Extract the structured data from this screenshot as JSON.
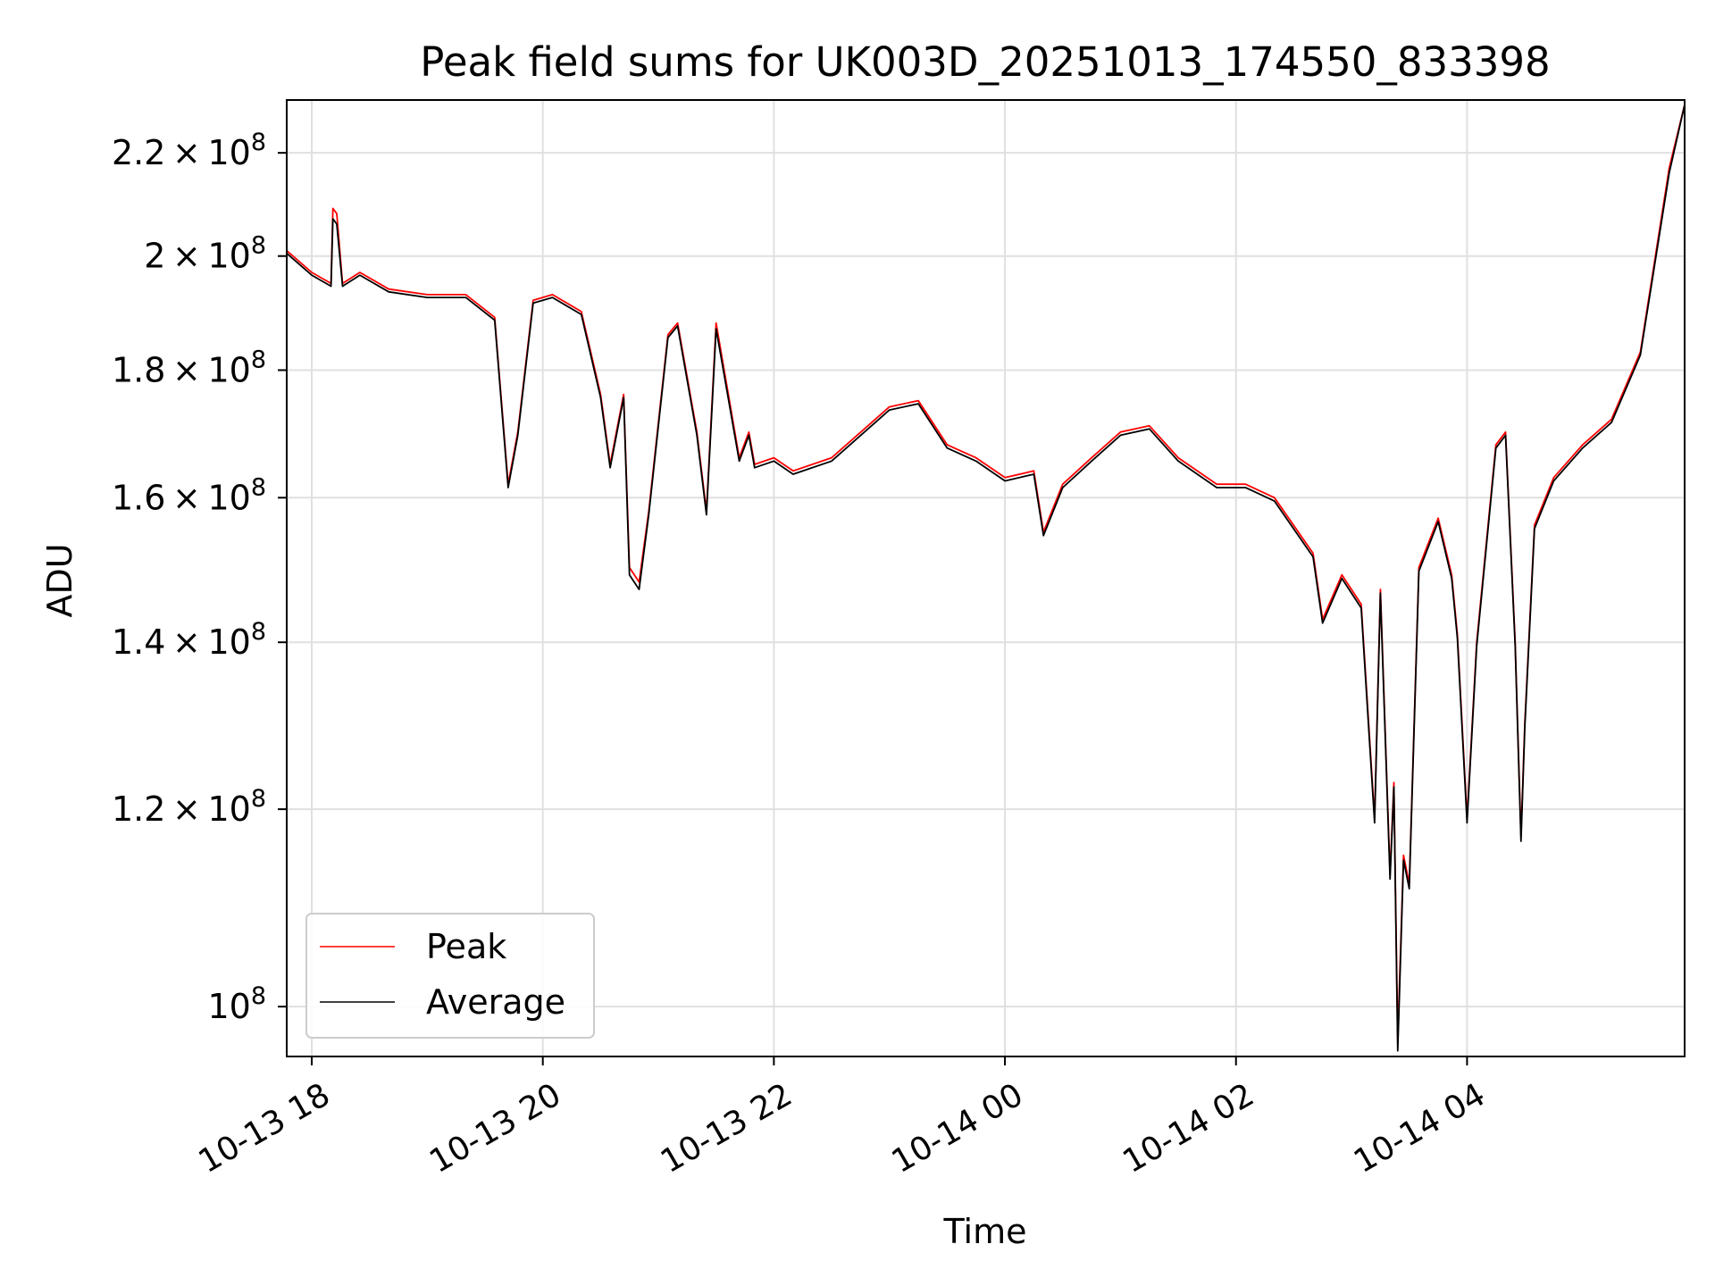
{
  "chart_data": {
    "type": "line",
    "title": "Peak field sums for UK003D_20251013_174550_833398",
    "xlabel": "Time",
    "ylabel": "ADU",
    "yscale": "log",
    "grid": true,
    "legend_placement": "lower-left",
    "xlim": [
      "2025-10-13 17:47",
      "2025-10-14 05:53"
    ],
    "ylim": [
      95500000,
      231000000
    ],
    "x_ticks": [
      "2025-10-13 18:00",
      "2025-10-13 20:00",
      "2025-10-13 22:00",
      "2025-10-14 00:00",
      "2025-10-14 02:00",
      "2025-10-14 04:00"
    ],
    "x_tick_labels": [
      "10-13 18",
      "10-13 20",
      "10-13 22",
      "10-14 00",
      "10-14 02",
      "10-14 04"
    ],
    "y_ticks": [
      100000000,
      120000000,
      140000000,
      160000000,
      180000000,
      200000000,
      220000000
    ],
    "y_tick_labels": [
      {
        "mantissa": "",
        "exp": "8"
      },
      {
        "mantissa": "1.2",
        "exp": "8"
      },
      {
        "mantissa": "1.4",
        "exp": "8"
      },
      {
        "mantissa": "1.6",
        "exp": "8"
      },
      {
        "mantissa": "1.8",
        "exp": "8"
      },
      {
        "mantissa": "2",
        "exp": "8"
      },
      {
        "mantissa": "2.2",
        "exp": "8"
      }
    ],
    "series": [
      {
        "name": "Peak",
        "color": "#ff0000",
        "x": [
          "2025-10-13 17:47",
          "2025-10-13 18:00",
          "2025-10-13 18:10",
          "2025-10-13 18:11",
          "2025-10-13 18:13",
          "2025-10-13 18:16",
          "2025-10-13 18:25",
          "2025-10-13 18:40",
          "2025-10-13 19:00",
          "2025-10-13 19:20",
          "2025-10-13 19:35",
          "2025-10-13 19:42",
          "2025-10-13 19:47",
          "2025-10-13 19:55",
          "2025-10-13 20:05",
          "2025-10-13 20:20",
          "2025-10-13 20:30",
          "2025-10-13 20:35",
          "2025-10-13 20:42",
          "2025-10-13 20:45",
          "2025-10-13 20:50",
          "2025-10-13 20:55",
          "2025-10-13 21:05",
          "2025-10-13 21:10",
          "2025-10-13 21:20",
          "2025-10-13 21:25",
          "2025-10-13 21:30",
          "2025-10-13 21:42",
          "2025-10-13 21:47",
          "2025-10-13 21:50",
          "2025-10-13 22:00",
          "2025-10-13 22:10",
          "2025-10-13 22:30",
          "2025-10-13 23:00",
          "2025-10-13 23:15",
          "2025-10-13 23:30",
          "2025-10-13 23:45",
          "2025-10-14 00:00",
          "2025-10-14 00:15",
          "2025-10-14 00:20",
          "2025-10-14 00:30",
          "2025-10-14 00:45",
          "2025-10-14 01:00",
          "2025-10-14 01:15",
          "2025-10-14 01:30",
          "2025-10-14 01:50",
          "2025-10-14 02:05",
          "2025-10-14 02:20",
          "2025-10-14 02:40",
          "2025-10-14 02:45",
          "2025-10-14 02:55",
          "2025-10-14 03:05",
          "2025-10-14 03:12",
          "2025-10-14 03:15",
          "2025-10-14 03:20",
          "2025-10-14 03:22",
          "2025-10-14 03:24",
          "2025-10-14 03:27",
          "2025-10-14 03:30",
          "2025-10-14 03:35",
          "2025-10-14 03:45",
          "2025-10-14 03:52",
          "2025-10-14 03:55",
          "2025-10-14 04:00",
          "2025-10-14 04:05",
          "2025-10-14 04:15",
          "2025-10-14 04:20",
          "2025-10-14 04:25",
          "2025-10-14 04:28",
          "2025-10-14 04:30",
          "2025-10-14 04:35",
          "2025-10-14 04:45",
          "2025-10-14 05:00",
          "2025-10-14 05:15",
          "2025-10-14 05:30",
          "2025-10-14 05:45",
          "2025-10-14 05:53"
        ],
        "values": [
          201000000,
          197000000,
          195000000,
          209000000,
          208000000,
          195000000,
          197000000,
          194000000,
          193000000,
          193000000,
          189000000,
          162000000,
          170000000,
          192000000,
          193000000,
          190000000,
          176000000,
          165000000,
          176000000,
          150000000,
          148000000,
          158000000,
          186000000,
          188000000,
          170000000,
          158000000,
          188000000,
          166000000,
          170000000,
          165000000,
          166000000,
          164000000,
          166000000,
          174000000,
          175000000,
          168000000,
          166000000,
          163000000,
          164000000,
          155000000,
          162000000,
          166000000,
          170000000,
          171000000,
          166000000,
          162000000,
          162000000,
          160000000,
          152000000,
          143000000,
          149000000,
          145000000,
          119000000,
          147000000,
          113000000,
          123000000,
          97000000,
          115000000,
          112000000,
          150000000,
          157000000,
          149000000,
          141000000,
          119000000,
          140000000,
          168000000,
          170000000,
          140000000,
          117000000,
          130000000,
          156000000,
          163000000,
          168000000,
          172000000,
          183000000,
          217000000,
          230000000
        ]
      },
      {
        "name": "Average",
        "color": "#000000",
        "x": [
          "2025-10-13 17:47",
          "2025-10-13 18:00",
          "2025-10-13 18:10",
          "2025-10-13 18:11",
          "2025-10-13 18:13",
          "2025-10-13 18:16",
          "2025-10-13 18:25",
          "2025-10-13 18:40",
          "2025-10-13 19:00",
          "2025-10-13 19:20",
          "2025-10-13 19:35",
          "2025-10-13 19:42",
          "2025-10-13 19:47",
          "2025-10-13 19:55",
          "2025-10-13 20:05",
          "2025-10-13 20:20",
          "2025-10-13 20:30",
          "2025-10-13 20:35",
          "2025-10-13 20:42",
          "2025-10-13 20:45",
          "2025-10-13 20:50",
          "2025-10-13 20:55",
          "2025-10-13 21:05",
          "2025-10-13 21:10",
          "2025-10-13 21:20",
          "2025-10-13 21:25",
          "2025-10-13 21:30",
          "2025-10-13 21:42",
          "2025-10-13 21:47",
          "2025-10-13 21:50",
          "2025-10-13 22:00",
          "2025-10-13 22:10",
          "2025-10-13 22:30",
          "2025-10-13 23:00",
          "2025-10-13 23:15",
          "2025-10-13 23:30",
          "2025-10-13 23:45",
          "2025-10-14 00:00",
          "2025-10-14 00:15",
          "2025-10-14 00:20",
          "2025-10-14 00:30",
          "2025-10-14 00:45",
          "2025-10-14 01:00",
          "2025-10-14 01:15",
          "2025-10-14 01:30",
          "2025-10-14 01:50",
          "2025-10-14 02:05",
          "2025-10-14 02:20",
          "2025-10-14 02:40",
          "2025-10-14 02:45",
          "2025-10-14 02:55",
          "2025-10-14 03:05",
          "2025-10-14 03:12",
          "2025-10-14 03:15",
          "2025-10-14 03:20",
          "2025-10-14 03:22",
          "2025-10-14 03:24",
          "2025-10-14 03:27",
          "2025-10-14 03:30",
          "2025-10-14 03:35",
          "2025-10-14 03:45",
          "2025-10-14 03:52",
          "2025-10-14 03:55",
          "2025-10-14 04:00",
          "2025-10-14 04:05",
          "2025-10-14 04:15",
          "2025-10-14 04:20",
          "2025-10-14 04:25",
          "2025-10-14 04:28",
          "2025-10-14 04:30",
          "2025-10-14 04:35",
          "2025-10-14 04:45",
          "2025-10-14 05:00",
          "2025-10-14 05:15",
          "2025-10-14 05:30",
          "2025-10-14 05:45",
          "2025-10-14 05:53"
        ],
        "values": [
          200500000,
          196500000,
          194500000,
          207000000,
          206000000,
          194500000,
          196500000,
          193500000,
          192500000,
          192500000,
          188500000,
          161500000,
          169500000,
          191500000,
          192500000,
          189500000,
          175500000,
          164500000,
          175500000,
          149000000,
          147000000,
          157500000,
          185500000,
          187500000,
          169500000,
          157500000,
          187000000,
          165500000,
          169500000,
          164500000,
          165500000,
          163500000,
          165500000,
          173500000,
          174500000,
          167500000,
          165500000,
          162500000,
          163500000,
          154500000,
          161500000,
          165500000,
          169500000,
          170500000,
          165500000,
          161500000,
          161500000,
          159500000,
          151500000,
          142500000,
          148500000,
          144500000,
          118500000,
          146500000,
          112500000,
          122500000,
          96000000,
          114500000,
          111500000,
          149500000,
          156500000,
          148500000,
          140500000,
          118500000,
          139500000,
          167500000,
          169500000,
          139500000,
          116500000,
          129500000,
          155500000,
          162500000,
          167500000,
          171500000,
          182500000,
          216000000,
          230000000
        ]
      }
    ]
  }
}
